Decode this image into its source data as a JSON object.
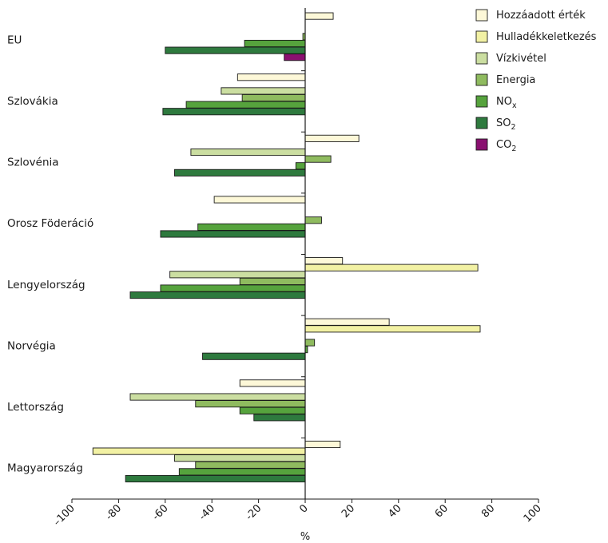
{
  "chart_data": {
    "type": "bar",
    "orientation": "horizontal",
    "xlabel": "%",
    "xlim": [
      -100,
      100
    ],
    "xticks": [
      "–100",
      "-80",
      "-60",
      "-40",
      "-20",
      "0",
      "20",
      "40",
      "60",
      "80",
      "100"
    ],
    "grid": false,
    "legend_position": "top-right",
    "categories": [
      "EU",
      "Szlovákia",
      "Szlovénia",
      "Orosz Föderáció",
      "Lengyelország",
      "Norvégia",
      "Lettország",
      "Magyarország"
    ],
    "series": [
      {
        "name": "Hozzáadott érték",
        "label_main": "Hozzáadott érték",
        "label_sub": "",
        "color": "#fdf8d8",
        "values": [
          12,
          -29,
          23,
          -39,
          16,
          36,
          -28,
          15
        ]
      },
      {
        "name": "Hulladékkeletkezés",
        "label_main": "Hulladékkeletkezés",
        "label_sub": "",
        "color": "#f2f1a4",
        "values": [
          null,
          null,
          null,
          null,
          74,
          75,
          null,
          -91
        ]
      },
      {
        "name": "Vízkivétel",
        "label_main": "Vízkivétel",
        "label_sub": "",
        "color": "#cbdea1",
        "values": [
          null,
          -36,
          -49,
          null,
          -58,
          null,
          -75,
          -56
        ]
      },
      {
        "name": "Energia",
        "label_main": "Energia",
        "label_sub": "",
        "color": "#8fbb5f",
        "values": [
          -1,
          -27,
          11,
          7,
          -28,
          4,
          -47,
          -47
        ]
      },
      {
        "name": "NOx",
        "label_main": "NO",
        "label_sub": "x",
        "color": "#56a33d",
        "values": [
          -26,
          -51,
          -4,
          -46,
          -62,
          1,
          -28,
          -54
        ]
      },
      {
        "name": "SO2",
        "label_main": "SO",
        "label_sub": "2",
        "color": "#2e7a3e",
        "values": [
          -60,
          -61,
          -56,
          -62,
          -75,
          -44,
          -22,
          -77
        ]
      },
      {
        "name": "CO2",
        "label_main": "CO",
        "label_sub": "2",
        "color": "#8a1070",
        "values": [
          -9,
          null,
          null,
          null,
          null,
          null,
          null,
          null
        ]
      }
    ]
  }
}
